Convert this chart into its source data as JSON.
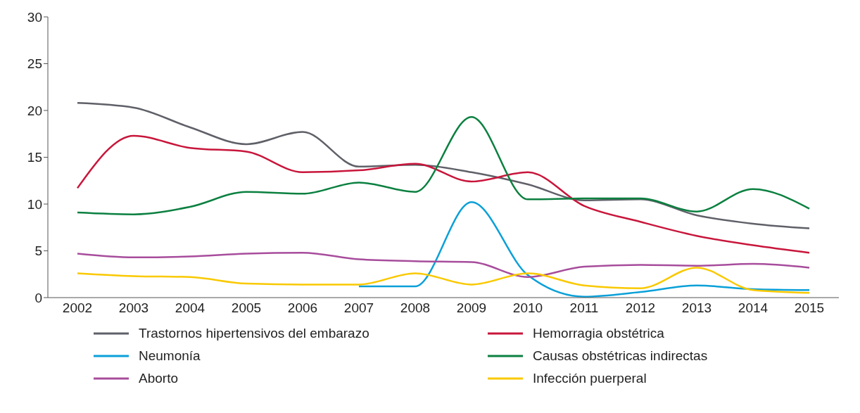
{
  "chart_data": {
    "type": "line",
    "categories": [
      "2002",
      "2003",
      "2004",
      "2005",
      "2006",
      "2007",
      "2008",
      "2009",
      "2010",
      "2011",
      "2012",
      "2013",
      "2014",
      "2015"
    ],
    "series": [
      {
        "name": "Trastornos hipertensivos del embarazo",
        "color": "#5f6068",
        "values": [
          20.8,
          20.3,
          18.2,
          16.4,
          17.7,
          14.0,
          14.2,
          13.4,
          12.1,
          10.4,
          10.5,
          8.8,
          7.9,
          7.4
        ]
      },
      {
        "name": "Hemorragia obstétrica",
        "color": "#c8163b",
        "values": [
          11.7,
          17.3,
          16.0,
          15.6,
          13.4,
          13.6,
          14.3,
          12.4,
          13.4,
          9.8,
          8.1,
          6.6,
          5.6,
          4.8
        ]
      },
      {
        "name": "Neumonía",
        "color": "#0aa0d8",
        "values": [
          null,
          null,
          null,
          null,
          null,
          1.2,
          1.2,
          10.2,
          2.4,
          0.1,
          0.6,
          1.3,
          0.9,
          0.8
        ]
      },
      {
        "name": "Causas obstétricas indirectas",
        "color": "#0b8040",
        "values": [
          9.1,
          8.9,
          9.7,
          11.3,
          11.1,
          12.3,
          11.3,
          19.3,
          10.5,
          10.6,
          10.6,
          9.2,
          11.6,
          9.5
        ]
      },
      {
        "name": "Aborto",
        "color": "#a74d9c",
        "values": [
          4.7,
          4.3,
          4.4,
          4.7,
          4.8,
          4.1,
          3.9,
          3.8,
          2.2,
          3.3,
          3.5,
          3.4,
          3.6,
          3.2
        ]
      },
      {
        "name": "Infección puerperal",
        "color": "#f9c900",
        "values": [
          2.6,
          2.3,
          2.2,
          1.5,
          1.4,
          1.4,
          2.6,
          1.4,
          2.6,
          1.3,
          1.0,
          3.2,
          0.8,
          0.5
        ]
      }
    ],
    "ylim": [
      0,
      30
    ],
    "yticks": [
      0,
      5,
      10,
      15,
      20,
      25,
      30
    ],
    "grid": false,
    "legend": "bottom",
    "marker": "none",
    "line_style": "solid"
  }
}
